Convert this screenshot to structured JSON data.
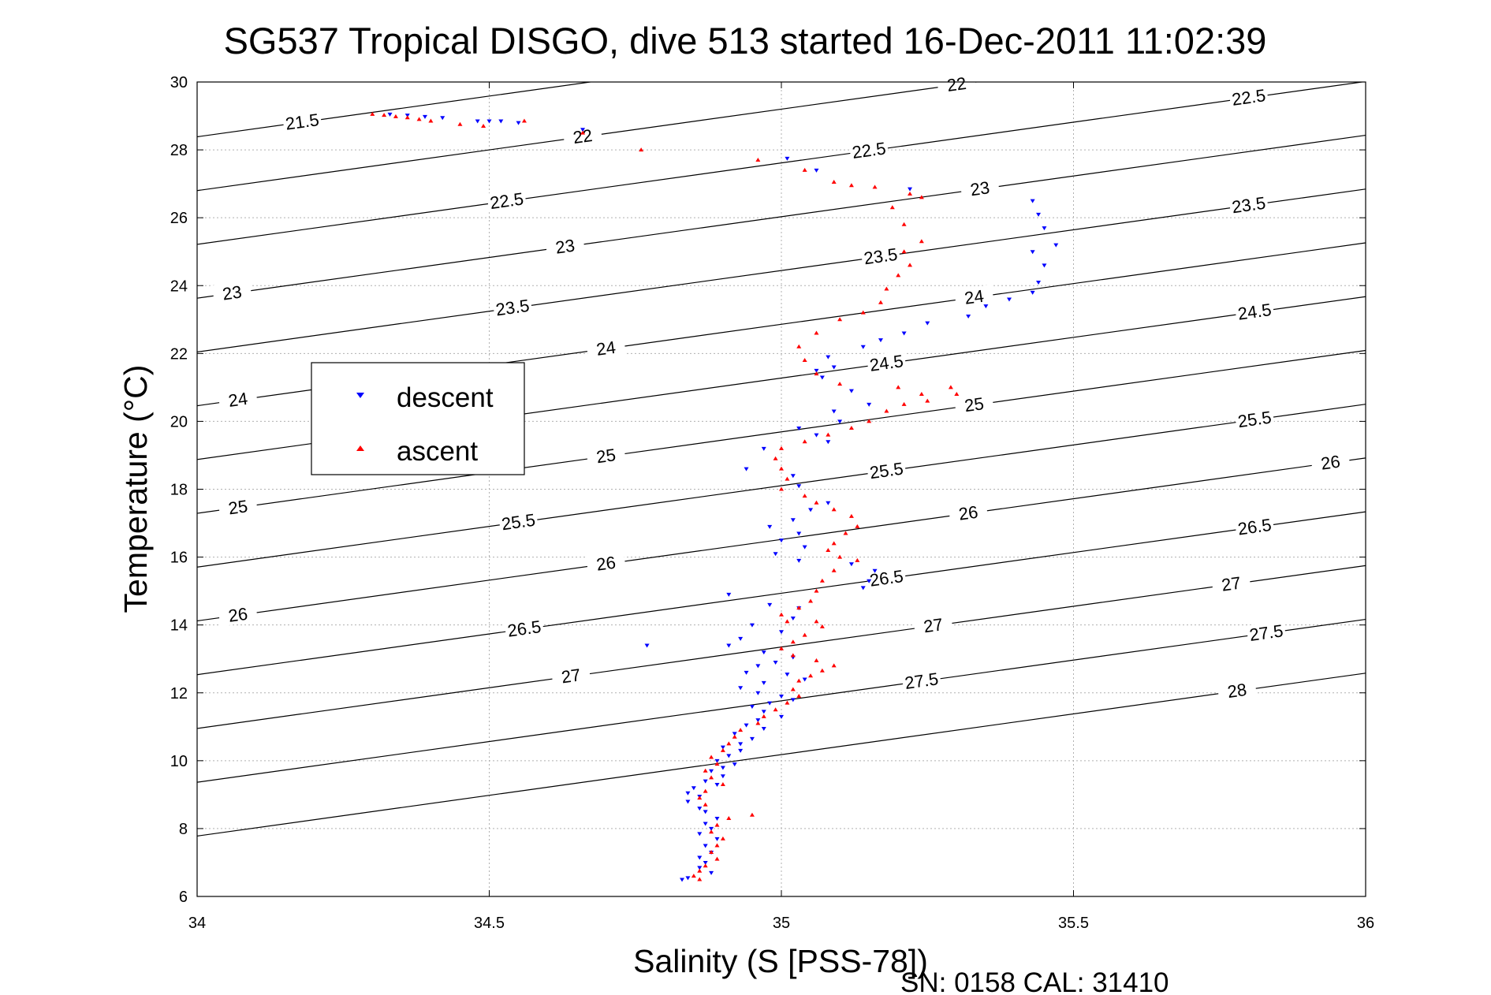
{
  "chart_data": {
    "type": "scatter",
    "title": "SG537 Tropical DISGO, dive 513 started 16-Dec-2011 11:02:39",
    "xlabel": "Salinity (S [PSS-78])",
    "ylabel": "Temperature (°C)",
    "footer": "SN: 0158  CAL: 31410",
    "xlim": [
      34,
      36
    ],
    "ylim": [
      6,
      30
    ],
    "xticks": [
      34,
      34.5,
      35,
      35.5,
      36
    ],
    "xtick_labels": [
      "34",
      "34.5",
      "35",
      "35.5",
      "36"
    ],
    "yticks": [
      6,
      8,
      10,
      12,
      14,
      16,
      18,
      20,
      22,
      24,
      26,
      28,
      30
    ],
    "ytick_labels": [
      "6",
      "8",
      "10",
      "12",
      "14",
      "16",
      "18",
      "20",
      "22",
      "24",
      "26",
      "28",
      "30"
    ],
    "grid": true,
    "legend_placement": "left",
    "isopycnal_contours": {
      "levels": [
        21.5,
        22,
        22.5,
        23,
        23.5,
        24,
        24.5,
        25,
        25.5,
        26,
        26.5,
        27,
        27.5,
        28
      ],
      "slope_degC_per_psu": 2.4,
      "temp_at_s34_for_22": 26.8,
      "density_step_degC": 3.17,
      "label_positions": [
        {
          "text": "21.5",
          "s": 34.18
        },
        {
          "text": "22",
          "s": 34.66
        },
        {
          "text": "22.5",
          "s": 34.53
        },
        {
          "text": "23",
          "s": 34.63
        },
        {
          "text": "23",
          "s": 34.06
        },
        {
          "text": "23.5",
          "s": 34.54
        },
        {
          "text": "24",
          "s": 34.7
        },
        {
          "text": "24",
          "s": 34.07
        },
        {
          "text": "25",
          "s": 34.07
        },
        {
          "text": "25",
          "s": 34.7
        },
        {
          "text": "25.5",
          "s": 34.55
        },
        {
          "text": "26",
          "s": 34.07
        },
        {
          "text": "26",
          "s": 34.7
        },
        {
          "text": "26.5",
          "s": 34.56
        },
        {
          "text": "27",
          "s": 34.64
        },
        {
          "text": "22",
          "s": 35.3
        },
        {
          "text": "22.5",
          "s": 35.15
        },
        {
          "text": "23",
          "s": 35.34
        },
        {
          "text": "23.5",
          "s": 35.17
        },
        {
          "text": "24",
          "s": 35.33
        },
        {
          "text": "24.5",
          "s": 35.18
        },
        {
          "text": "25",
          "s": 35.33
        },
        {
          "text": "25.5",
          "s": 35.18
        },
        {
          "text": "26",
          "s": 35.32
        },
        {
          "text": "26.5",
          "s": 35.18
        },
        {
          "text": "27",
          "s": 35.26
        },
        {
          "text": "27.5",
          "s": 35.24
        },
        {
          "text": "22.5",
          "s": 35.8
        },
        {
          "text": "23.5",
          "s": 35.8
        },
        {
          "text": "24.5",
          "s": 35.81
        },
        {
          "text": "25.5",
          "s": 35.81
        },
        {
          "text": "26",
          "s": 35.94
        },
        {
          "text": "26.5",
          "s": 35.81
        },
        {
          "text": "27",
          "s": 35.77
        },
        {
          "text": "27.5",
          "s": 35.83
        },
        {
          "text": "28",
          "s": 35.78
        }
      ]
    },
    "series": [
      {
        "name": "descent",
        "color": "#0000ff",
        "marker": "triangle-down",
        "points": [
          [
            34.33,
            29.05
          ],
          [
            34.36,
            29.02
          ],
          [
            34.39,
            28.98
          ],
          [
            34.42,
            28.95
          ],
          [
            34.48,
            28.85
          ],
          [
            34.5,
            28.85
          ],
          [
            34.52,
            28.85
          ],
          [
            34.55,
            28.8
          ],
          [
            34.66,
            28.6
          ],
          [
            35.01,
            27.75
          ],
          [
            35.06,
            27.4
          ],
          [
            35.22,
            26.85
          ],
          [
            35.43,
            26.5
          ],
          [
            35.44,
            26.1
          ],
          [
            35.45,
            25.7
          ],
          [
            35.47,
            25.2
          ],
          [
            35.43,
            25.0
          ],
          [
            35.45,
            24.6
          ],
          [
            35.44,
            24.1
          ],
          [
            35.43,
            23.8
          ],
          [
            35.39,
            23.6
          ],
          [
            35.35,
            23.4
          ],
          [
            35.32,
            23.1
          ],
          [
            35.25,
            22.9
          ],
          [
            35.21,
            22.6
          ],
          [
            35.17,
            22.4
          ],
          [
            35.14,
            22.2
          ],
          [
            35.08,
            21.9
          ],
          [
            35.09,
            21.6
          ],
          [
            35.06,
            21.5
          ],
          [
            35.07,
            21.3
          ],
          [
            35.12,
            20.9
          ],
          [
            35.15,
            20.5
          ],
          [
            35.09,
            20.3
          ],
          [
            35.1,
            20.0
          ],
          [
            35.03,
            19.8
          ],
          [
            35.06,
            19.6
          ],
          [
            35.08,
            19.4
          ],
          [
            34.97,
            19.2
          ],
          [
            34.94,
            18.6
          ],
          [
            35.02,
            18.4
          ],
          [
            35.03,
            18.1
          ],
          [
            35.08,
            17.6
          ],
          [
            35.05,
            17.4
          ],
          [
            35.02,
            17.1
          ],
          [
            34.98,
            16.9
          ],
          [
            35.03,
            16.7
          ],
          [
            35.0,
            16.5
          ],
          [
            35.04,
            16.3
          ],
          [
            34.99,
            16.1
          ],
          [
            35.03,
            15.9
          ],
          [
            35.12,
            15.8
          ],
          [
            35.16,
            15.6
          ],
          [
            35.15,
            15.3
          ],
          [
            35.14,
            15.1
          ],
          [
            34.91,
            14.9
          ],
          [
            34.98,
            14.6
          ],
          [
            35.03,
            14.5
          ],
          [
            35.02,
            14.2
          ],
          [
            34.95,
            14.0
          ],
          [
            35.0,
            13.8
          ],
          [
            34.93,
            13.6
          ],
          [
            34.77,
            13.4
          ],
          [
            34.91,
            13.4
          ],
          [
            34.97,
            13.2
          ],
          [
            35.02,
            13.05
          ],
          [
            34.99,
            12.9
          ],
          [
            34.96,
            12.8
          ],
          [
            34.94,
            12.6
          ],
          [
            35.01,
            12.55
          ],
          [
            35.04,
            12.4
          ],
          [
            34.97,
            12.3
          ],
          [
            34.93,
            12.15
          ],
          [
            34.96,
            12.0
          ],
          [
            35.0,
            11.9
          ],
          [
            35.02,
            11.8
          ],
          [
            34.98,
            11.7
          ],
          [
            34.95,
            11.6
          ],
          [
            34.97,
            11.45
          ],
          [
            35.0,
            11.3
          ],
          [
            34.96,
            11.2
          ],
          [
            34.94,
            11.05
          ],
          [
            34.97,
            10.95
          ],
          [
            34.92,
            10.8
          ],
          [
            34.95,
            10.65
          ],
          [
            34.93,
            10.5
          ],
          [
            34.9,
            10.4
          ],
          [
            34.93,
            10.3
          ],
          [
            34.91,
            10.15
          ],
          [
            34.89,
            10.0
          ],
          [
            34.92,
            9.9
          ],
          [
            34.9,
            9.8
          ],
          [
            34.88,
            9.7
          ],
          [
            34.9,
            9.55
          ],
          [
            34.87,
            9.4
          ],
          [
            34.89,
            9.3
          ],
          [
            34.85,
            9.2
          ],
          [
            34.84,
            9.05
          ],
          [
            34.86,
            8.95
          ],
          [
            34.84,
            8.8
          ],
          [
            34.86,
            8.6
          ],
          [
            34.87,
            8.5
          ],
          [
            34.89,
            8.3
          ],
          [
            34.87,
            8.15
          ],
          [
            34.88,
            8.0
          ],
          [
            34.86,
            7.85
          ],
          [
            34.89,
            7.7
          ],
          [
            34.87,
            7.5
          ],
          [
            34.88,
            7.3
          ],
          [
            34.86,
            7.15
          ],
          [
            34.87,
            7.0
          ],
          [
            34.86,
            6.85
          ],
          [
            34.88,
            6.7
          ],
          [
            34.84,
            6.55
          ],
          [
            34.83,
            6.5
          ]
        ]
      },
      {
        "name": "ascent",
        "color": "#ff0000",
        "marker": "triangle-up",
        "points": [
          [
            34.3,
            29.05
          ],
          [
            34.32,
            29.02
          ],
          [
            34.34,
            28.98
          ],
          [
            34.36,
            28.95
          ],
          [
            34.38,
            28.9
          ],
          [
            34.4,
            28.85
          ],
          [
            34.45,
            28.75
          ],
          [
            34.49,
            28.7
          ],
          [
            34.56,
            28.85
          ],
          [
            34.66,
            28.5
          ],
          [
            34.76,
            28.0
          ],
          [
            34.96,
            27.7
          ],
          [
            35.04,
            27.4
          ],
          [
            35.09,
            27.05
          ],
          [
            35.12,
            26.95
          ],
          [
            35.16,
            26.9
          ],
          [
            35.22,
            26.7
          ],
          [
            35.24,
            26.6
          ],
          [
            35.19,
            26.3
          ],
          [
            35.21,
            25.8
          ],
          [
            35.24,
            25.3
          ],
          [
            35.21,
            25.0
          ],
          [
            35.22,
            24.6
          ],
          [
            35.2,
            24.3
          ],
          [
            35.18,
            23.9
          ],
          [
            35.17,
            23.5
          ],
          [
            35.14,
            23.2
          ],
          [
            35.1,
            23.0
          ],
          [
            35.06,
            22.6
          ],
          [
            35.03,
            22.2
          ],
          [
            35.04,
            21.8
          ],
          [
            35.06,
            21.4
          ],
          [
            35.1,
            21.1
          ],
          [
            35.2,
            21.0
          ],
          [
            35.24,
            20.8
          ],
          [
            35.29,
            21.0
          ],
          [
            35.3,
            20.8
          ],
          [
            35.25,
            20.6
          ],
          [
            35.21,
            20.5
          ],
          [
            35.18,
            20.3
          ],
          [
            35.15,
            20.0
          ],
          [
            35.12,
            19.8
          ],
          [
            35.08,
            19.6
          ],
          [
            35.04,
            19.4
          ],
          [
            35.0,
            19.2
          ],
          [
            34.99,
            18.9
          ],
          [
            35.0,
            18.6
          ],
          [
            35.01,
            18.3
          ],
          [
            35.0,
            18.0
          ],
          [
            35.04,
            17.8
          ],
          [
            35.06,
            17.6
          ],
          [
            35.09,
            17.4
          ],
          [
            35.12,
            17.2
          ],
          [
            35.13,
            16.9
          ],
          [
            35.11,
            16.7
          ],
          [
            35.09,
            16.4
          ],
          [
            35.08,
            16.2
          ],
          [
            35.1,
            16.0
          ],
          [
            35.13,
            15.9
          ],
          [
            35.09,
            15.6
          ],
          [
            35.07,
            15.3
          ],
          [
            35.06,
            15.0
          ],
          [
            35.05,
            14.7
          ],
          [
            35.03,
            14.5
          ],
          [
            35.0,
            14.3
          ],
          [
            35.01,
            14.1
          ],
          [
            35.06,
            14.1
          ],
          [
            35.07,
            13.95
          ],
          [
            35.04,
            13.7
          ],
          [
            35.02,
            13.5
          ],
          [
            35.0,
            13.3
          ],
          [
            35.02,
            13.1
          ],
          [
            35.06,
            12.95
          ],
          [
            35.09,
            12.8
          ],
          [
            35.07,
            12.65
          ],
          [
            35.05,
            12.5
          ],
          [
            35.03,
            12.35
          ],
          [
            35.02,
            12.1
          ],
          [
            35.03,
            11.9
          ],
          [
            35.01,
            11.7
          ],
          [
            34.99,
            11.5
          ],
          [
            34.97,
            11.3
          ],
          [
            34.96,
            11.1
          ],
          [
            34.93,
            10.9
          ],
          [
            34.92,
            10.7
          ],
          [
            34.91,
            10.5
          ],
          [
            34.9,
            10.3
          ],
          [
            34.88,
            10.1
          ],
          [
            34.89,
            9.9
          ],
          [
            34.87,
            9.7
          ],
          [
            34.88,
            9.5
          ],
          [
            34.9,
            9.3
          ],
          [
            34.87,
            9.1
          ],
          [
            34.86,
            8.9
          ],
          [
            34.87,
            8.7
          ],
          [
            34.95,
            8.4
          ],
          [
            34.91,
            8.3
          ],
          [
            34.89,
            8.1
          ],
          [
            34.88,
            7.9
          ],
          [
            34.9,
            7.7
          ],
          [
            34.89,
            7.5
          ],
          [
            34.88,
            7.3
          ],
          [
            34.89,
            7.1
          ],
          [
            34.87,
            6.9
          ],
          [
            34.86,
            6.75
          ],
          [
            34.85,
            6.6
          ],
          [
            34.86,
            6.5
          ]
        ]
      }
    ],
    "legend": [
      {
        "label": "descent",
        "color": "#0000ff"
      },
      {
        "label": "ascent",
        "color": "#ff0000"
      }
    ]
  }
}
